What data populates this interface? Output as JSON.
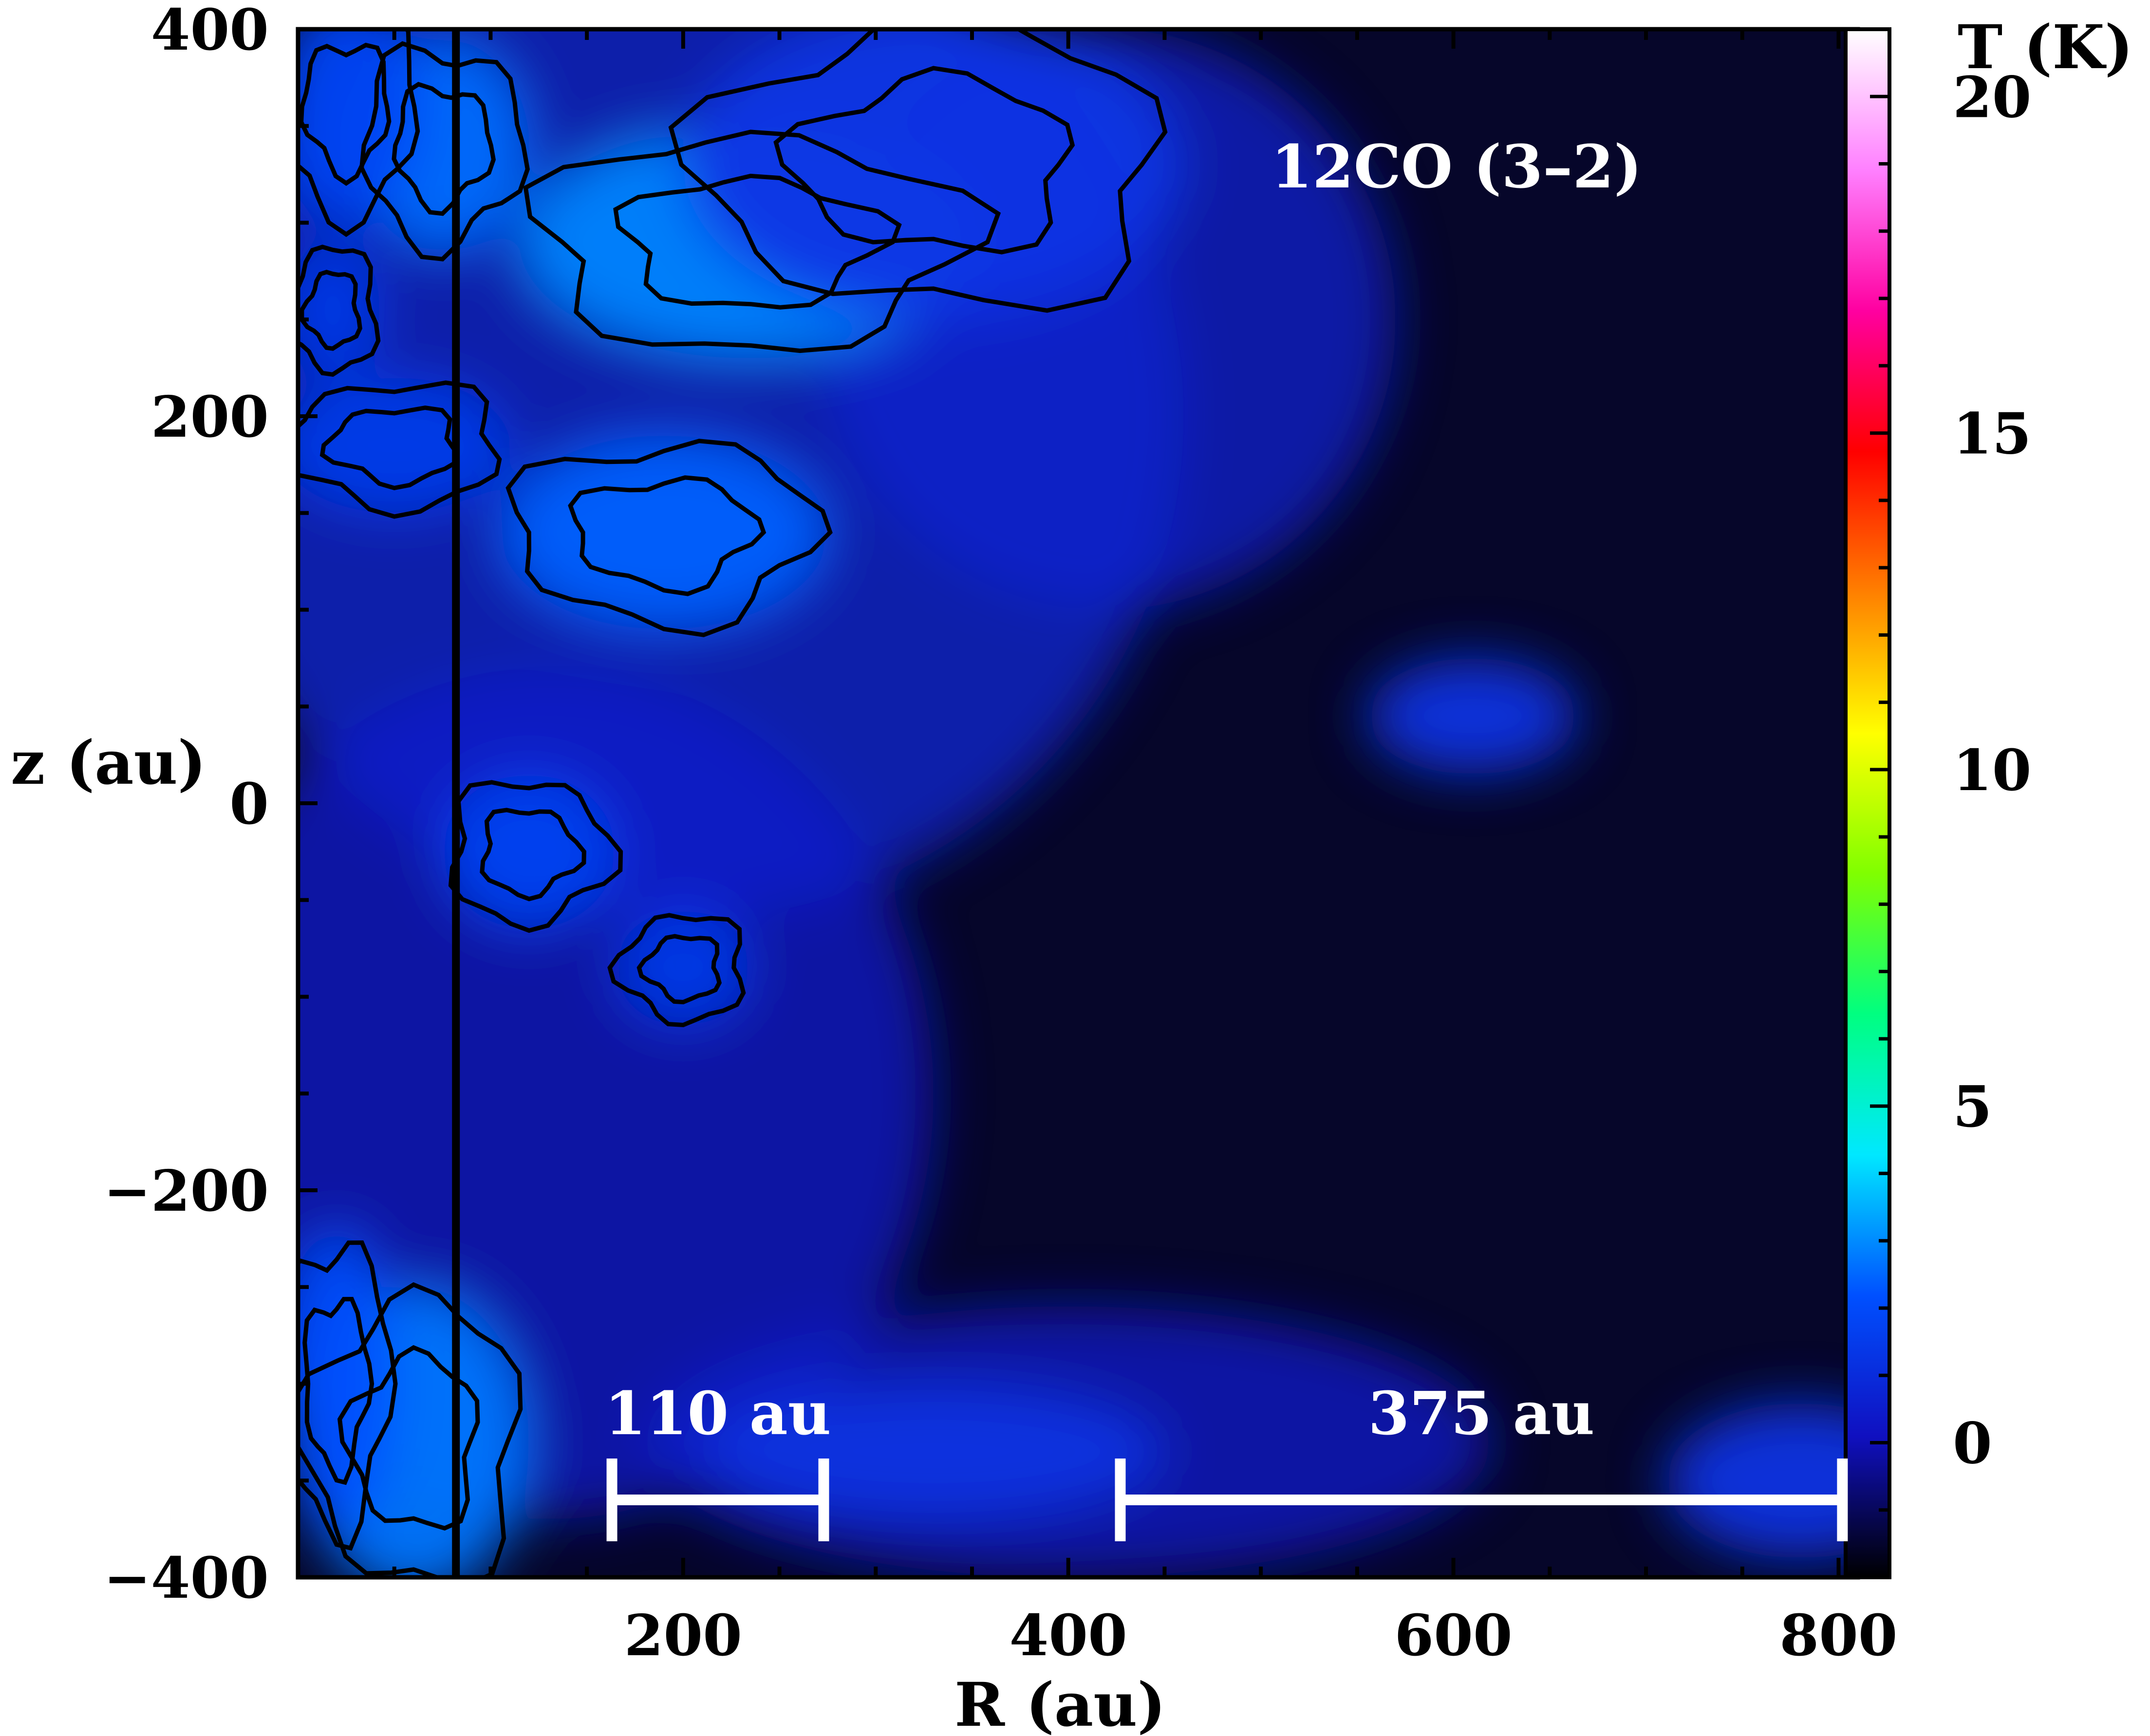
{
  "chart_data": {
    "type": "heatmap",
    "title": "12CO (3–2)",
    "xlabel": "R (au)",
    "ylabel": "z (au)",
    "colorbar_label": "T (K)",
    "xlim": [
      0,
      810
    ],
    "ylim": [
      -400,
      400
    ],
    "clim": [
      -2,
      21
    ],
    "x_ticks": [
      200,
      400,
      600,
      800
    ],
    "x_tick_labels": [
      "200",
      "400",
      "600",
      "800"
    ],
    "y_ticks": [
      -400,
      -200,
      0,
      200,
      400
    ],
    "y_tick_labels": [
      "−400",
      "−200",
      "0",
      "200",
      "400"
    ],
    "colorbar_ticks": [
      0,
      5,
      10,
      15,
      20
    ],
    "colorbar_tick_labels": [
      "0",
      "5",
      "10",
      "15",
      "20"
    ],
    "colormap": [
      "#000000",
      "#1010c0",
      "#0050ff",
      "#00e8ff",
      "#00ff80",
      "#80ff00",
      "#ffff00",
      "#ff8000",
      "#ff0000",
      "#ff00a0",
      "#ff80ff",
      "#ffffff"
    ],
    "vertical_line_R": 82,
    "scale_bars": [
      {
        "label": "110 au",
        "R_start": 163,
        "R_end": 273,
        "z": -360
      },
      {
        "label": "375 au",
        "R_start": 427,
        "R_end": 802,
        "z": -360
      }
    ],
    "emission_regions_K": [
      {
        "R": 75,
        "z": 340,
        "T": 2.6,
        "wR": 45,
        "wz": 55
      },
      {
        "R": 235,
        "z": 290,
        "T": 2.9,
        "wR": 120,
        "wz": 60
      },
      {
        "R": 25,
        "z": 360,
        "T": 1.8,
        "wR": 40,
        "wz": 60
      },
      {
        "R": 18,
        "z": 255,
        "T": 1.4,
        "wR": 25,
        "wz": 35
      },
      {
        "R": 50,
        "z": 185,
        "T": 1.5,
        "wR": 60,
        "wz": 35
      },
      {
        "R": 190,
        "z": 140,
        "T": 2.4,
        "wR": 85,
        "wz": 50
      },
      {
        "R": 330,
        "z": 330,
        "T": 1.3,
        "wR": 130,
        "wz": 80
      },
      {
        "R": 120,
        "z": -25,
        "T": 1.7,
        "wR": 45,
        "wz": 40
      },
      {
        "R": 200,
        "z": -85,
        "T": 1.4,
        "wR": 35,
        "wz": 30
      },
      {
        "R": 60,
        "z": -330,
        "T": 2.7,
        "wR": 60,
        "wz": 80
      },
      {
        "R": 20,
        "z": -300,
        "T": 2.1,
        "wR": 30,
        "wz": 80
      },
      {
        "R": 330,
        "z": -335,
        "T": 1.2,
        "wR": 120,
        "wz": 35
      },
      {
        "R": 610,
        "z": 45,
        "T": 1.2,
        "wR": 55,
        "wz": 30
      },
      {
        "R": 780,
        "z": -350,
        "T": 1.2,
        "wR": 70,
        "wz": 40
      }
    ]
  }
}
